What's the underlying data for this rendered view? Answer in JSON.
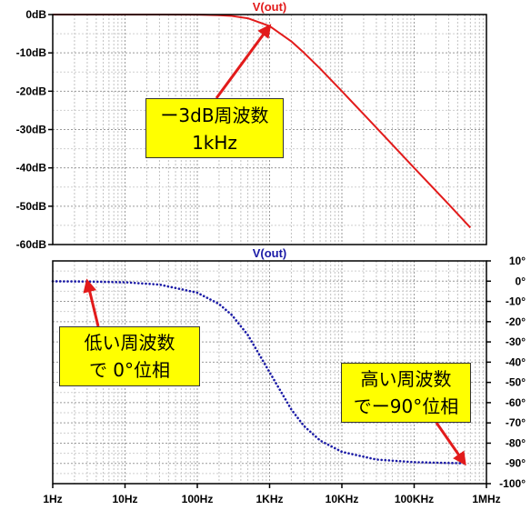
{
  "chart_data": [
    {
      "type": "line",
      "title": "V(out)",
      "xscale": "log",
      "xlim": [
        1,
        1000000
      ],
      "ylim": [
        -60,
        0
      ],
      "y_ticks": [
        "0dB",
        "-10dB",
        "-20dB",
        "-30dB",
        "-40dB",
        "-50dB",
        "-60dB"
      ],
      "grid": true,
      "series": [
        {
          "color": "#e21b1b",
          "style": "solid",
          "x": [
            1,
            3,
            10,
            30,
            100,
            200,
            300,
            500,
            1000,
            2000,
            3000,
            5000,
            10000,
            30000,
            100000,
            300000,
            600000
          ],
          "y": [
            0,
            0,
            0,
            0,
            -0.04,
            -0.17,
            -0.37,
            -0.97,
            -3.0,
            -7.0,
            -10.0,
            -14.1,
            -20.0,
            -29.5,
            -40.0,
            -49.5,
            -55.6
          ]
        }
      ],
      "annotations": [
        {
          "lines": [
            "ー3dB周波数",
            "1kHz"
          ],
          "x": 1000,
          "y": -3
        }
      ]
    },
    {
      "type": "line",
      "title": "V(out)",
      "xscale": "log",
      "xlim": [
        1,
        1000000
      ],
      "ylim": [
        -100,
        10
      ],
      "x_ticks": [
        "1Hz",
        "10Hz",
        "100Hz",
        "1KHz",
        "10KHz",
        "100KHz",
        "1MHz"
      ],
      "y_ticks": [
        "10°",
        "0°",
        "-10°",
        "-20°",
        "-30°",
        "-40°",
        "-50°",
        "-60°",
        "-70°",
        "-80°",
        "-90°",
        "-100°"
      ],
      "grid": true,
      "series": [
        {
          "color": "#1a1aa6",
          "style": "dotted",
          "x": [
            1,
            3,
            10,
            30,
            100,
            200,
            300,
            500,
            1000,
            2000,
            3000,
            5000,
            10000,
            30000,
            100000,
            300000,
            500000
          ],
          "y": [
            -0.06,
            -0.17,
            -0.57,
            -1.7,
            -5.7,
            -11.3,
            -16.7,
            -26.6,
            -45.0,
            -63.4,
            -71.6,
            -78.7,
            -84.3,
            -88.1,
            -89.4,
            -89.8,
            -89.9
          ]
        }
      ],
      "annotations": [
        {
          "lines": [
            "低い周波数",
            "で 0°位相"
          ],
          "x": 3,
          "y": 0
        },
        {
          "lines": [
            "高い周波数",
            "でー90°位相"
          ],
          "x": 500000,
          "y": -90
        }
      ]
    }
  ]
}
